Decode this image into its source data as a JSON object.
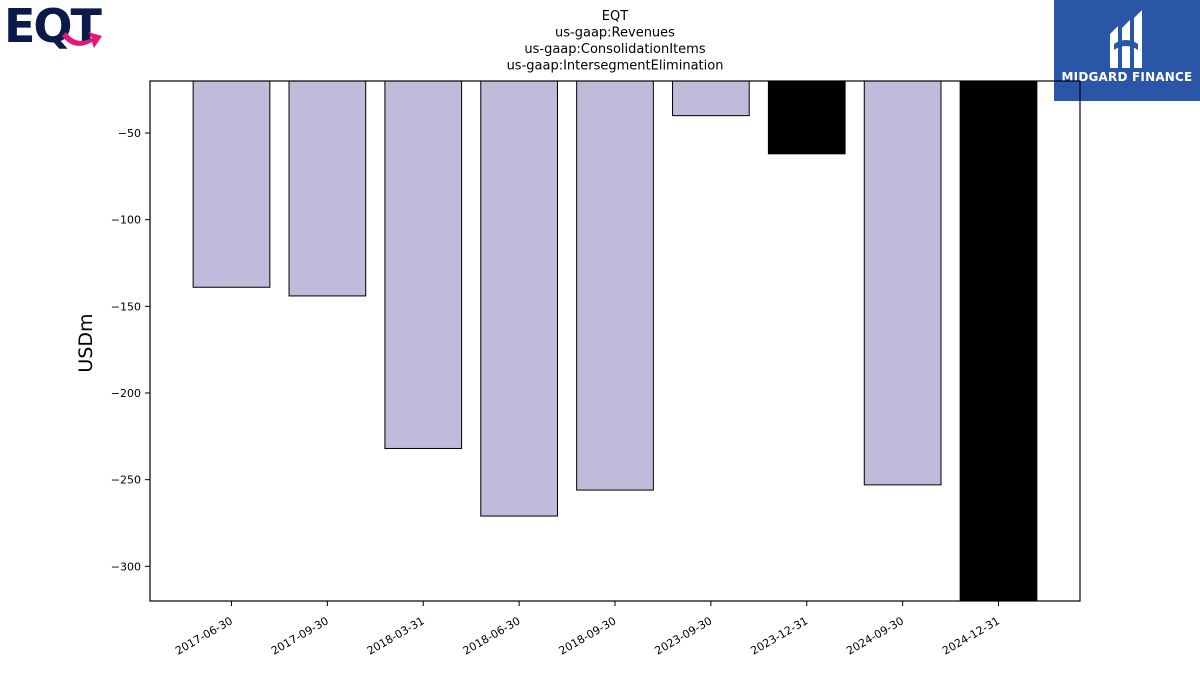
{
  "logo": {
    "company": "EQT",
    "colors": {
      "navy": "#0c1a4b",
      "pink": "#e5157a"
    }
  },
  "brand": {
    "text": "MIDGARD FINANCE",
    "background": "#2a56a8",
    "icon": "midgard-finance-icon"
  },
  "chart_data": {
    "type": "bar",
    "title": [
      "EQT",
      "us-gaap:Revenues",
      "us-gaap:ConsolidationItems",
      "us-gaap:IntersegmentElimination"
    ],
    "ylabel": "USDm",
    "xlabel": "",
    "categories": [
      "2017-06-30",
      "2017-09-30",
      "2018-03-31",
      "2018-06-30",
      "2018-09-30",
      "2023-09-30",
      "2023-12-31",
      "2024-09-30",
      "2024-12-31"
    ],
    "values": [
      -139,
      -144,
      -232,
      -271,
      -256,
      -40,
      -62,
      -253,
      -320
    ],
    "colors": [
      "#bebbdb",
      "#bebbdb",
      "#bebbdb",
      "#bebbdb",
      "#bebbdb",
      "#bebbdb",
      "#000000",
      "#bebbdb",
      "#000000"
    ],
    "ylim": [
      -320,
      -20
    ],
    "yticks": [
      -50,
      -100,
      -150,
      -200,
      -250,
      -300
    ],
    "ytick_labels": [
      "−50",
      "−100",
      "−150",
      "−200",
      "−250",
      "−300"
    ],
    "grid": false,
    "legend": "none"
  }
}
